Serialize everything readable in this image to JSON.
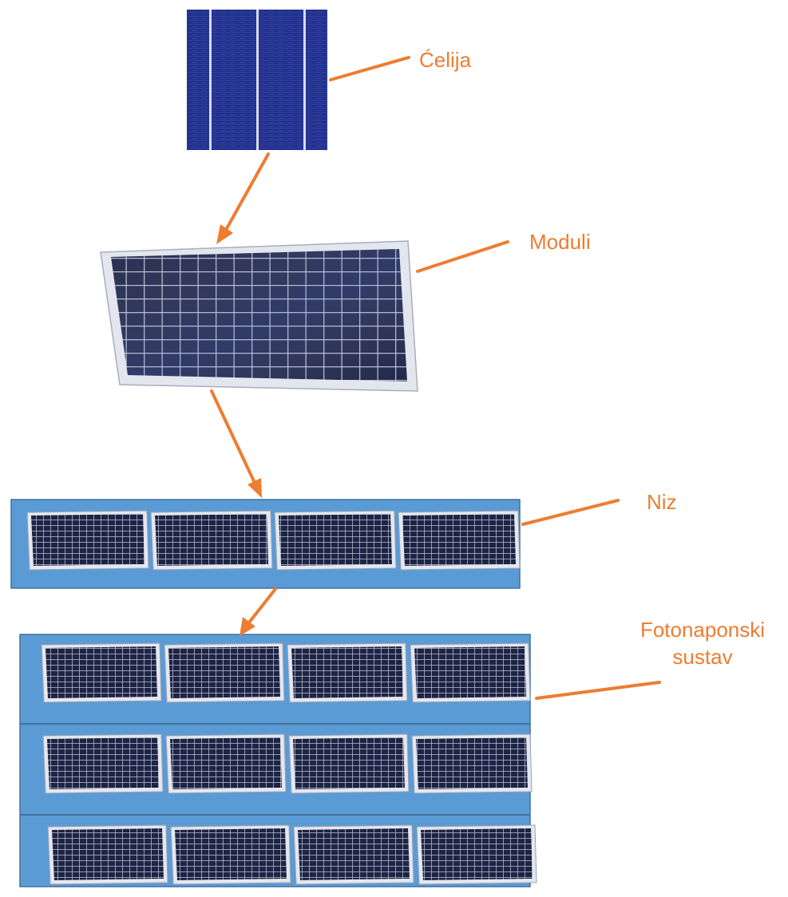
{
  "labels": {
    "cell": "Ćelija",
    "module": "Moduli",
    "string": "Niz",
    "system_line1": "Fotonaponski",
    "system_line2": "sustav"
  },
  "colors": {
    "accent": "#ED7D31",
    "panel_background": "#5B9BD5",
    "panel_border": "#41719C",
    "cell_blue": "#1F2E86",
    "module_dark": "#1C2340",
    "module_frame": "#E4E7EE"
  },
  "structure": {
    "string_modules": 4,
    "system_rows": 3,
    "system_modules_per_row": 4
  }
}
